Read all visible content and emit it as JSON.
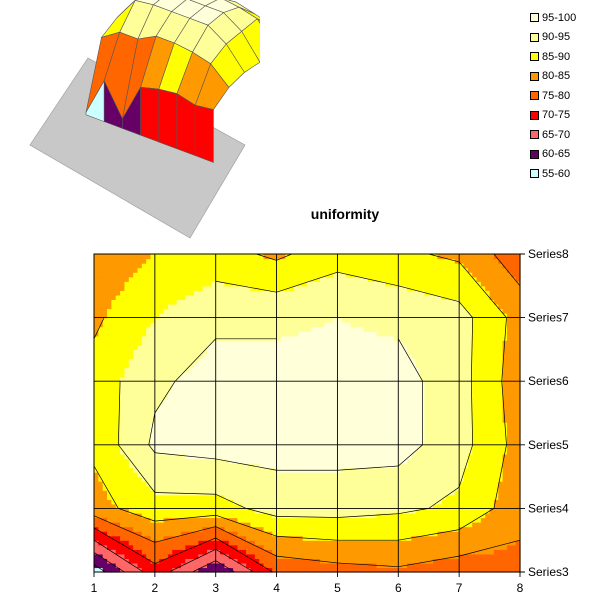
{
  "chart_data": {
    "type": "heatmap",
    "title": "uniformity",
    "x": [
      1,
      2,
      3,
      4,
      5,
      6,
      7,
      8
    ],
    "series": [
      {
        "name": "Series3",
        "values": [
          57,
          73,
          60,
          76,
          78,
          79,
          77,
          78
        ]
      },
      {
        "name": "Series4",
        "values": [
          83,
          88,
          88,
          92,
          92,
          91,
          89,
          82
        ]
      },
      {
        "name": "Series5",
        "values": [
          86,
          96,
          97,
          97,
          97,
          97,
          92,
          83
        ]
      },
      {
        "name": "Series6",
        "values": [
          87,
          94,
          97,
          97,
          97,
          97,
          92,
          82
        ]
      },
      {
        "name": "Series7",
        "values": [
          84,
          90,
          94,
          94,
          95,
          94,
          92,
          83
        ]
      },
      {
        "name": "Series8",
        "values": [
          81,
          85,
          87,
          84,
          88,
          86,
          84,
          77
        ]
      }
    ],
    "levels": [
      {
        "label": "95-100",
        "min": 95,
        "max": 100,
        "color": "#FFFFD9"
      },
      {
        "label": "90-95",
        "min": 90,
        "max": 95,
        "color": "#FFFF99"
      },
      {
        "label": "85-90",
        "min": 85,
        "max": 90,
        "color": "#FFFF00"
      },
      {
        "label": "80-85",
        "min": 80,
        "max": 85,
        "color": "#FF9900"
      },
      {
        "label": "75-80",
        "min": 75,
        "max": 80,
        "color": "#FF6600"
      },
      {
        "label": "70-75",
        "min": 70,
        "max": 75,
        "color": "#FF0000"
      },
      {
        "label": "65-70",
        "min": 65,
        "max": 70,
        "color": "#FF6666"
      },
      {
        "label": "60-65",
        "min": 60,
        "max": 65,
        "color": "#660066"
      },
      {
        "label": "55-60",
        "min": 55,
        "max": 60,
        "color": "#CCFFFF"
      }
    ],
    "legend_position": "top-right",
    "grid": true
  }
}
